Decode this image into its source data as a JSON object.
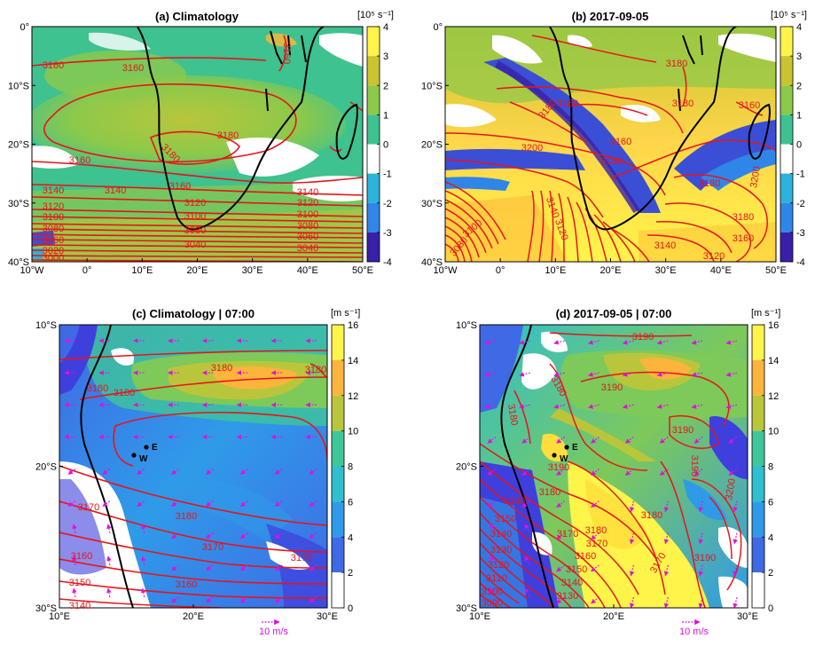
{
  "colors": {
    "contour": "#e8141a",
    "coast": "#000000",
    "vector": "#e010e0",
    "diverging_scale": [
      "#3a1fa8",
      "#3b4fd6",
      "#2f86e8",
      "#2bb3dc",
      "#ffffff",
      "#3ec28f",
      "#8cc94a",
      "#c9c42f",
      "#ffb73a",
      "#fff44a"
    ],
    "speed_scale": [
      "#ffffff",
      "#3f3fdd",
      "#3f6ae6",
      "#2f9be8",
      "#2fbfcf",
      "#3fc69a",
      "#7dc95a",
      "#b9c63b",
      "#fbb43c",
      "#ffdd3b",
      "#fff44a"
    ]
  },
  "panels": [
    {
      "id": "a",
      "title": "(a) Climatology",
      "x_ticks": [
        "10°W",
        "0°",
        "10°E",
        "20°E",
        "30°E",
        "40°E",
        "50°E"
      ],
      "y_ticks": [
        "0°",
        "10°S",
        "20°S",
        "30°S",
        "40°S"
      ],
      "colorbar_unit": "[10⁵ s⁻¹]",
      "colorbar_ticks": [
        "4",
        "3",
        "2",
        "1",
        "0",
        "-1",
        "-2",
        "-3",
        "-4"
      ],
      "contour_labels": [
        "3160",
        "3160",
        "3160",
        "3180",
        "3160",
        "3180",
        "3160",
        "3140",
        "3140",
        "3120",
        "3120",
        "3100",
        "3100",
        "3080",
        "3080",
        "3060",
        "3040",
        "3020",
        "3000",
        "3140",
        "3120",
        "3100",
        "3080",
        "3060",
        "3040"
      ]
    },
    {
      "id": "b",
      "title": "(b) 2017-09-05",
      "x_ticks": [
        "10°W",
        "0°",
        "10°E",
        "20°E",
        "30°E",
        "40°E",
        "50°E"
      ],
      "y_ticks": [
        "0°",
        "10°S",
        "20°S",
        "30°S",
        "40°S"
      ],
      "colorbar_unit": "[10⁵ s⁻¹]",
      "colorbar_ticks": [
        "4",
        "3",
        "2",
        "1",
        "0",
        "-1",
        "-2",
        "-3",
        "-4"
      ],
      "contour_labels": [
        "3180",
        "3160",
        "3180",
        "3180",
        "3160",
        "3180",
        "3200",
        "3180",
        "3160",
        "3140",
        "3120",
        "3200",
        "3180",
        "3160",
        "3140",
        "3120",
        "3100",
        "3080"
      ]
    },
    {
      "id": "c",
      "title": "(c) Climatology | 07:00",
      "x_ticks": [
        "10°E",
        "20°E",
        "30°E"
      ],
      "y_ticks": [
        "10°S",
        "20°S",
        "30°S"
      ],
      "colorbar_unit": "[m s⁻¹]",
      "colorbar_ticks": [
        "16",
        "14",
        "12",
        "10",
        "8",
        "6",
        "4",
        "2",
        "0"
      ],
      "contour_labels": [
        "3180",
        "3180",
        "3180",
        "3180",
        "3170",
        "3160",
        "3150",
        "3140",
        "3180",
        "3170",
        "3160",
        "3170"
      ],
      "stations": [
        "E",
        "W"
      ],
      "reference_vector": "10 m/s"
    },
    {
      "id": "d",
      "title": "(d) 2017-09-05 | 07:00",
      "x_ticks": [
        "10°E",
        "20°E",
        "30°E"
      ],
      "y_ticks": [
        "10°S",
        "20°S",
        "30°S"
      ],
      "colorbar_unit": "[m s⁻¹]",
      "colorbar_ticks": [
        "16",
        "14",
        "12",
        "10",
        "8",
        "6",
        "4",
        "2",
        "0"
      ],
      "contour_labels": [
        "3190",
        "3180",
        "3180",
        "3190",
        "3190",
        "3190",
        "3190",
        "3180",
        "3180",
        "3170",
        "3170",
        "3160",
        "3150",
        "3140",
        "3130",
        "3120",
        "3110",
        "3100",
        "3090",
        "3200",
        "3180",
        "3170",
        "3160",
        "3150",
        "3140",
        "3130",
        "3190"
      ],
      "stations": [
        "E",
        "W"
      ],
      "reference_vector": "10 m/s"
    }
  ]
}
